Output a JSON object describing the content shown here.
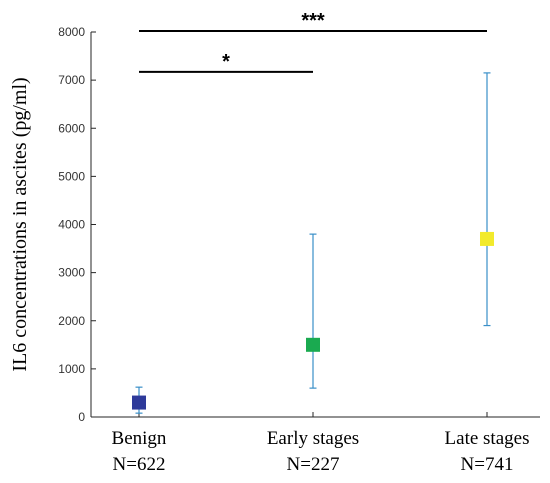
{
  "chart_data": {
    "type": "scatter",
    "title": "",
    "ylabel": "IL6 concentrations in ascites (pg/ml)",
    "ylim": [
      0,
      8000
    ],
    "yticks": [
      0,
      1000,
      2000,
      3000,
      4000,
      5000,
      6000,
      7000,
      8000
    ],
    "grid": false,
    "categories": [
      {
        "name": "Benign",
        "n_label": "N=622"
      },
      {
        "name": "Early stages",
        "n_label": "N=227"
      },
      {
        "name": "Late stages",
        "n_label": "N=741"
      }
    ],
    "points": [
      {
        "category": "Benign",
        "value": 300,
        "lower": 80,
        "upper": 620,
        "color": "#2e3a9a"
      },
      {
        "category": "Early stages",
        "value": 1500,
        "lower": 600,
        "upper": 3800,
        "color": "#1aaa50"
      },
      {
        "category": "Late stages",
        "value": 3700,
        "lower": 1900,
        "upper": 7150,
        "color": "#f2ea2c"
      }
    ],
    "errorbar_color": "#3a8fc8",
    "significance": [
      {
        "from": "Benign",
        "to": "Early stages",
        "y": 7150,
        "label": "*"
      },
      {
        "from": "Benign",
        "to": "Late stages",
        "y": 8000,
        "label": "***"
      }
    ]
  }
}
